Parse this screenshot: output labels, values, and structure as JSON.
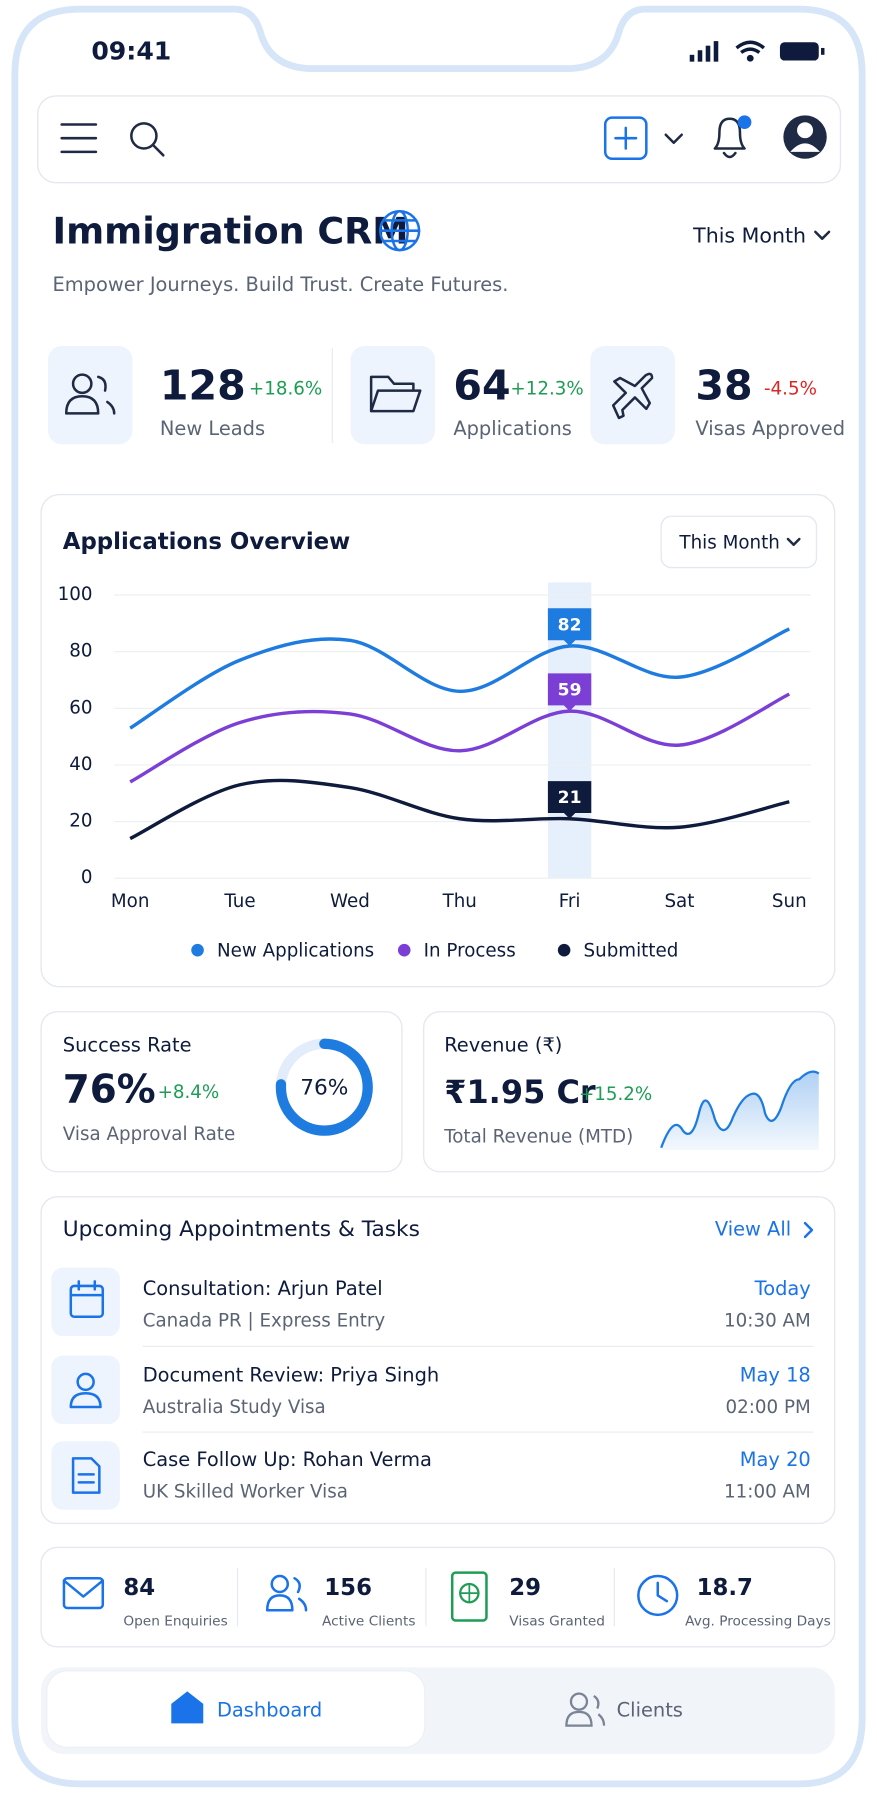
{
  "status_bar": {
    "time": "09:41"
  },
  "header": {
    "title": "Immigration CRM",
    "subtitle": "Empower Journeys. Build Trust. Create Futures.",
    "period": "This Month"
  },
  "kpis": [
    {
      "value": "128",
      "change": "+18.6%",
      "label": "New Leads"
    },
    {
      "value": "64",
      "change": "+12.3%",
      "label": "Applications"
    },
    {
      "value": "38",
      "change": "-4.5%",
      "label": "Visas Approved"
    }
  ],
  "chart_data": {
    "type": "line",
    "title": "Applications Overview",
    "period": "This Month",
    "categories": [
      "Mon",
      "Tue",
      "Wed",
      "Thu",
      "Fri",
      "Sat",
      "Sun"
    ],
    "series": [
      {
        "name": "New Applications",
        "color": "#1e7be0",
        "values": [
          53,
          77,
          84,
          66,
          82,
          71,
          88
        ]
      },
      {
        "name": "In Process",
        "color": "#7b3fd6",
        "values": [
          34,
          55,
          58,
          45,
          59,
          47,
          65
        ]
      },
      {
        "name": "Submitted",
        "color": "#0f1b3d",
        "values": [
          14,
          33,
          32,
          21,
          21,
          18,
          27
        ]
      }
    ],
    "ylim": [
      0,
      100
    ],
    "yticks": [
      0,
      20,
      40,
      60,
      80,
      100
    ],
    "grid": true
  },
  "success": {
    "title": "Success Rate",
    "rate": 76,
    "rate_label": "76%",
    "change": "+8.4%",
    "subtitle": "Visa Approval Rate"
  },
  "revenue": {
    "title": "Revenue (₹)",
    "value": "₹1.95 Cr",
    "change": "+15.2%",
    "subtitle": "Total Revenue (MTD)"
  },
  "appointments": {
    "title": "Upcoming Appointments & Tasks",
    "view_all": "View All",
    "items": [
      {
        "title": "Consultation: Arjun Patel",
        "subtitle": "Canada PR | Express Entry",
        "date": "Today",
        "time": "10:30 AM"
      },
      {
        "title": "Document Review: Priya Singh",
        "subtitle": "Australia Study Visa",
        "date": "May 18",
        "time": "02:00 PM"
      },
      {
        "title": "Case Follow Up: Rohan Verma",
        "subtitle": "UK Skilled Worker Visa",
        "date": "May 20",
        "time": "11:00 AM"
      }
    ]
  },
  "stats": [
    {
      "value": "84",
      "label": "Open Enquiries"
    },
    {
      "value": "156",
      "label": "Active Clients"
    },
    {
      "value": "29",
      "label": "Visas Granted"
    },
    {
      "value": "18.7",
      "label": "Avg. Processing Days"
    }
  ],
  "nav": [
    "Dashboard",
    "Clients"
  ]
}
